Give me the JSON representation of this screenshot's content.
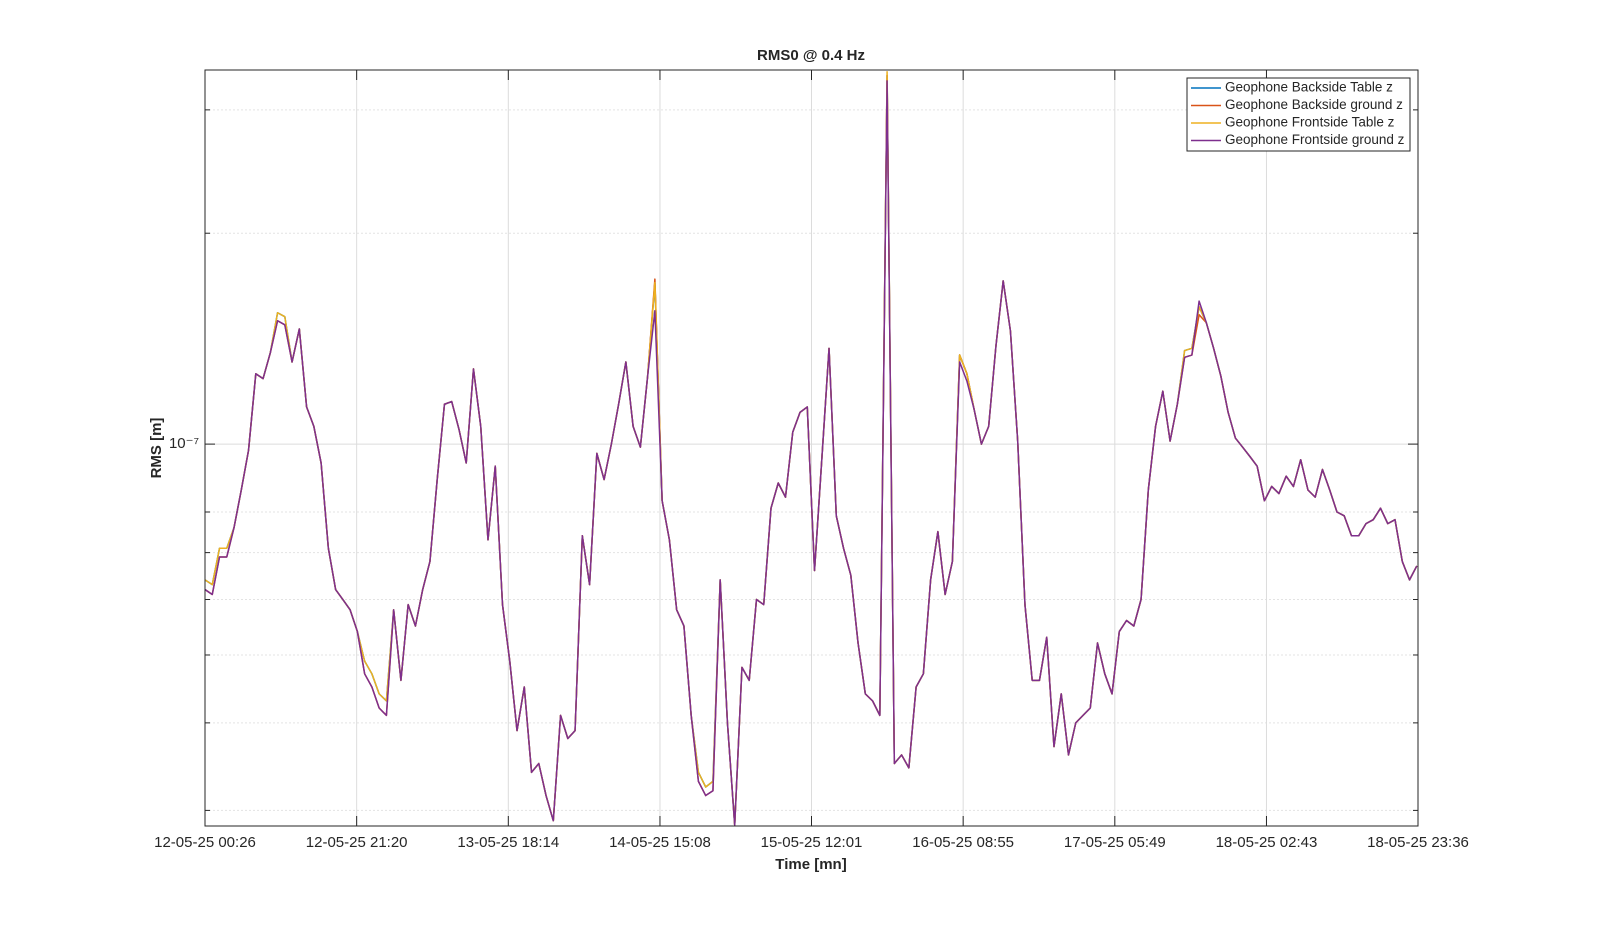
{
  "chart_data": {
    "type": "line",
    "title": "RMS0 @ 0.4 Hz",
    "xlabel": "Time [mn]",
    "ylabel": "RMS [m]",
    "yscale": "log",
    "grid": true,
    "legend": "northeast",
    "xlim": [
      "2025-05-12T00:26",
      "2025-05-18T23:36"
    ],
    "xticks": [
      {
        "value": "2025-05-12T00:26",
        "label": "12-05-25 00:26"
      },
      {
        "value": "2025-05-12T21:20",
        "label": "12-05-25 21:20"
      },
      {
        "value": "2025-05-13T18:14",
        "label": "13-05-25 18:14"
      },
      {
        "value": "2025-05-14T15:08",
        "label": "14-05-25 15:08"
      },
      {
        "value": "2025-05-15T12:01",
        "label": "15-05-25 12:01"
      },
      {
        "value": "2025-05-16T08:55",
        "label": "16-05-25 08:55"
      },
      {
        "value": "2025-05-17T05:49",
        "label": "17-05-25 05:49"
      },
      {
        "value": "2025-05-18T02:43",
        "label": "18-05-25 02:43"
      },
      {
        "value": "2025-05-18T23:36",
        "label": "18-05-25 23:36"
      }
    ],
    "ylim": [
      2.85e-08,
      3.42e-07
    ],
    "yticks": [
      {
        "value": 1e-07,
        "label": "10⁻⁷"
      }
    ],
    "yminorticks": [
      3e-08,
      4e-08,
      5e-08,
      6e-08,
      7e-08,
      8e-08,
      2e-07,
      3e-07
    ],
    "x": [
      "2025-05-12T00:26",
      "2025-05-12T01:26",
      "2025-05-12T02:26",
      "2025-05-12T03:26",
      "2025-05-12T04:26",
      "2025-05-12T05:26",
      "2025-05-12T06:26",
      "2025-05-12T07:26",
      "2025-05-12T08:26",
      "2025-05-12T09:26",
      "2025-05-12T10:26",
      "2025-05-12T11:26",
      "2025-05-12T12:26",
      "2025-05-12T13:26",
      "2025-05-12T14:26",
      "2025-05-12T15:26",
      "2025-05-12T16:26",
      "2025-05-12T17:26",
      "2025-05-12T18:26",
      "2025-05-12T19:26",
      "2025-05-12T20:26",
      "2025-05-12T21:26",
      "2025-05-12T22:26",
      "2025-05-12T23:26",
      "2025-05-13T00:26",
      "2025-05-13T01:26",
      "2025-05-13T02:26",
      "2025-05-13T03:26",
      "2025-05-13T04:26",
      "2025-05-13T05:26",
      "2025-05-13T06:26",
      "2025-05-13T07:26",
      "2025-05-13T08:26",
      "2025-05-13T09:26",
      "2025-05-13T10:26",
      "2025-05-13T11:26",
      "2025-05-13T12:26",
      "2025-05-13T13:26",
      "2025-05-13T14:26",
      "2025-05-13T15:26",
      "2025-05-13T16:26",
      "2025-05-13T17:26",
      "2025-05-13T18:26",
      "2025-05-13T19:26",
      "2025-05-13T20:26",
      "2025-05-13T21:26",
      "2025-05-13T22:26",
      "2025-05-13T23:26",
      "2025-05-14T00:26",
      "2025-05-14T01:26",
      "2025-05-14T02:26",
      "2025-05-14T03:26",
      "2025-05-14T04:26",
      "2025-05-14T05:26",
      "2025-05-14T06:26",
      "2025-05-14T07:26",
      "2025-05-14T08:26",
      "2025-05-14T09:26",
      "2025-05-14T10:26",
      "2025-05-14T11:26",
      "2025-05-14T12:26",
      "2025-05-14T13:26",
      "2025-05-14T14:26",
      "2025-05-14T15:26",
      "2025-05-14T16:26",
      "2025-05-14T17:26",
      "2025-05-14T18:26",
      "2025-05-14T19:26",
      "2025-05-14T20:26",
      "2025-05-14T21:26",
      "2025-05-14T22:26",
      "2025-05-14T23:26",
      "2025-05-15T00:26",
      "2025-05-15T01:26",
      "2025-05-15T02:26",
      "2025-05-15T03:26",
      "2025-05-15T04:26",
      "2025-05-15T05:26",
      "2025-05-15T06:26",
      "2025-05-15T07:26",
      "2025-05-15T08:26",
      "2025-05-15T09:26",
      "2025-05-15T10:26",
      "2025-05-15T11:26",
      "2025-05-15T12:26",
      "2025-05-15T13:26",
      "2025-05-15T14:26",
      "2025-05-15T15:26",
      "2025-05-15T16:26",
      "2025-05-15T17:26",
      "2025-05-15T18:26",
      "2025-05-15T19:26",
      "2025-05-15T20:26",
      "2025-05-15T21:26",
      "2025-05-15T22:26",
      "2025-05-15T23:26",
      "2025-05-16T00:26",
      "2025-05-16T01:26",
      "2025-05-16T02:26",
      "2025-05-16T03:26",
      "2025-05-16T04:26",
      "2025-05-16T05:26",
      "2025-05-16T06:26",
      "2025-05-16T07:26",
      "2025-05-16T08:26",
      "2025-05-16T09:26",
      "2025-05-16T10:26",
      "2025-05-16T11:26",
      "2025-05-16T12:26",
      "2025-05-16T13:26",
      "2025-05-16T14:26",
      "2025-05-16T15:26",
      "2025-05-16T16:26",
      "2025-05-16T17:26",
      "2025-05-16T18:26",
      "2025-05-16T19:26",
      "2025-05-16T20:26",
      "2025-05-16T21:26",
      "2025-05-16T22:26",
      "2025-05-16T23:26",
      "2025-05-17T00:26",
      "2025-05-17T01:26",
      "2025-05-17T02:26",
      "2025-05-17T03:26",
      "2025-05-17T04:26",
      "2025-05-17T05:26",
      "2025-05-17T06:26",
      "2025-05-17T07:26",
      "2025-05-17T08:26",
      "2025-05-17T09:26",
      "2025-05-17T10:26",
      "2025-05-17T11:26",
      "2025-05-17T12:26",
      "2025-05-17T13:26",
      "2025-05-17T14:26",
      "2025-05-17T15:26",
      "2025-05-17T16:26",
      "2025-05-17T17:26",
      "2025-05-17T18:26",
      "2025-05-17T19:26",
      "2025-05-17T20:26",
      "2025-05-17T21:26",
      "2025-05-17T22:26",
      "2025-05-17T23:26",
      "2025-05-18T00:26",
      "2025-05-18T01:26",
      "2025-05-18T02:26",
      "2025-05-18T03:26",
      "2025-05-18T04:26",
      "2025-05-18T05:26",
      "2025-05-18T06:26",
      "2025-05-18T07:26",
      "2025-05-18T08:26",
      "2025-05-18T09:26",
      "2025-05-18T10:26",
      "2025-05-18T11:26",
      "2025-05-18T12:26",
      "2025-05-18T13:26",
      "2025-05-18T14:26",
      "2025-05-18T15:26",
      "2025-05-18T16:26",
      "2025-05-18T17:26",
      "2025-05-18T18:26",
      "2025-05-18T19:26",
      "2025-05-18T20:26",
      "2025-05-18T21:26",
      "2025-05-18T22:26",
      "2025-05-18T23:26"
    ],
    "series": [
      {
        "name": "Geophone Backside Table z",
        "color": "#0072BD",
        "values": [
          6.4e-08,
          6.3e-08,
          7.1e-08,
          7.1e-08,
          7.6e-08,
          8.6e-08,
          9.8e-08,
          1.26e-07,
          1.24e-07,
          1.35e-07,
          1.54e-07,
          1.52e-07,
          1.31e-07,
          1.46e-07,
          1.13e-07,
          1.06e-07,
          9.4e-08,
          7.1e-08,
          6.2e-08,
          6e-08,
          5.8e-08,
          5.4e-08,
          4.9e-08,
          4.7e-08,
          4.4e-08,
          4.3e-08,
          5.8e-08,
          4.6e-08,
          5.9e-08,
          5.5e-08,
          6.2e-08,
          6.8e-08,
          8.9e-08,
          1.14e-07,
          1.15e-07,
          1.05e-07,
          9.4e-08,
          1.28e-07,
          1.06e-07,
          7.3e-08,
          9.3e-08,
          5.9e-08,
          4.9e-08,
          3.9e-08,
          4.5e-08,
          3.4e-08,
          3.5e-08,
          3.15e-08,
          2.9e-08,
          4.1e-08,
          3.8e-08,
          3.9e-08,
          7.4e-08,
          6.3e-08,
          9.7e-08,
          8.9e-08,
          1e-07,
          1.14e-07,
          1.31e-07,
          1.06e-07,
          9.9e-08,
          1.25e-07,
          1.7e-07,
          8.3e-08,
          7.3e-08,
          5.8e-08,
          5.5e-08,
          4.1e-08,
          3.4e-08,
          3.24e-08,
          3.3e-08,
          6.4e-08,
          4e-08,
          2.86e-08,
          4.8e-08,
          4.6e-08,
          6e-08,
          5.9e-08,
          8.1e-08,
          8.8e-08,
          8.4e-08,
          1.04e-07,
          1.11e-07,
          1.13e-07,
          6.6e-08,
          9.5e-08,
          1.37e-07,
          7.9e-08,
          7.1e-08,
          6.5e-08,
          5.2e-08,
          4.4e-08,
          4.3e-08,
          4.1e-08,
          3.36e-07,
          3.5e-08,
          3.6e-08,
          3.45e-08,
          4.5e-08,
          4.7e-08,
          6.4e-08,
          7.5e-08,
          6.1e-08,
          6.8e-08,
          1.34e-07,
          1.26e-07,
          1.12e-07,
          1e-07,
          1.06e-07,
          1.38e-07,
          1.71e-07,
          1.45e-07,
          1.01e-07,
          5.9e-08,
          4.6e-08,
          4.6e-08,
          5.3e-08,
          3.7e-08,
          4.4e-08,
          3.6e-08,
          4e-08,
          4.1e-08,
          4.2e-08,
          5.2e-08,
          4.7e-08,
          4.4e-08,
          5.4e-08,
          5.6e-08,
          5.5e-08,
          6e-08,
          8.6e-08,
          1.06e-07,
          1.19e-07,
          1.01e-07,
          1.14e-07,
          1.36e-07,
          1.37e-07,
          1.57e-07,
          1.49e-07,
          1.37e-07,
          1.25e-07,
          1.11e-07,
          1.02e-07,
          9.9e-08,
          9.6e-08,
          9.3e-08,
          8.3e-08,
          8.7e-08,
          8.5e-08,
          9e-08,
          8.7e-08,
          9.5e-08,
          8.6e-08,
          8.4e-08,
          9.2e-08,
          8.6e-08,
          8e-08,
          7.9e-08,
          7.4e-08,
          7.4e-08,
          7.7e-08,
          7.8e-08,
          8.1e-08,
          7.7e-08,
          7.8e-08,
          6.8e-08,
          6.4e-08,
          6.7e-08
        ]
      },
      {
        "name": "Geophone Backside ground z",
        "color": "#D95319",
        "values": [
          6.2e-08,
          6.1e-08,
          6.9e-08,
          6.9e-08,
          7.6e-08,
          8.6e-08,
          9.8e-08,
          1.26e-07,
          1.24e-07,
          1.35e-07,
          1.5e-07,
          1.48e-07,
          1.31e-07,
          1.46e-07,
          1.13e-07,
          1.06e-07,
          9.4e-08,
          7.1e-08,
          6.2e-08,
          6e-08,
          5.8e-08,
          5.4e-08,
          4.7e-08,
          4.5e-08,
          4.2e-08,
          4.1e-08,
          5.8e-08,
          4.6e-08,
          5.9e-08,
          5.5e-08,
          6.2e-08,
          6.8e-08,
          8.9e-08,
          1.14e-07,
          1.15e-07,
          1.05e-07,
          9.4e-08,
          1.28e-07,
          1.06e-07,
          7.3e-08,
          9.3e-08,
          5.9e-08,
          4.9e-08,
          3.9e-08,
          4.5e-08,
          3.4e-08,
          3.5e-08,
          3.15e-08,
          2.9e-08,
          4.1e-08,
          3.8e-08,
          3.9e-08,
          7.4e-08,
          6.3e-08,
          9.7e-08,
          8.9e-08,
          1e-07,
          1.14e-07,
          1.31e-07,
          1.06e-07,
          9.9e-08,
          1.25e-07,
          1.72e-07,
          8.3e-08,
          7.3e-08,
          5.8e-08,
          5.5e-08,
          4.1e-08,
          3.3e-08,
          3.15e-08,
          3.2e-08,
          6.4e-08,
          4e-08,
          2.86e-08,
          4.8e-08,
          4.6e-08,
          6e-08,
          5.9e-08,
          8.1e-08,
          8.8e-08,
          8.4e-08,
          1.04e-07,
          1.11e-07,
          1.13e-07,
          6.6e-08,
          9.5e-08,
          1.37e-07,
          7.9e-08,
          7.1e-08,
          6.5e-08,
          5.2e-08,
          4.4e-08,
          4.3e-08,
          4.1e-08,
          3.36e-07,
          3.5e-08,
          3.6e-08,
          3.45e-08,
          4.5e-08,
          4.7e-08,
          6.4e-08,
          7.5e-08,
          6.1e-08,
          6.8e-08,
          1.34e-07,
          1.26e-07,
          1.12e-07,
          1e-07,
          1.06e-07,
          1.38e-07,
          1.71e-07,
          1.45e-07,
          1.01e-07,
          5.9e-08,
          4.6e-08,
          4.6e-08,
          5.3e-08,
          3.7e-08,
          4.4e-08,
          3.6e-08,
          4e-08,
          4.1e-08,
          4.2e-08,
          5.2e-08,
          4.7e-08,
          4.4e-08,
          5.4e-08,
          5.6e-08,
          5.5e-08,
          6e-08,
          8.6e-08,
          1.06e-07,
          1.19e-07,
          1.01e-07,
          1.14e-07,
          1.33e-07,
          1.34e-07,
          1.53e-07,
          1.49e-07,
          1.37e-07,
          1.25e-07,
          1.11e-07,
          1.02e-07,
          9.9e-08,
          9.6e-08,
          9.3e-08,
          8.3e-08,
          8.7e-08,
          8.5e-08,
          9e-08,
          8.7e-08,
          9.5e-08,
          8.6e-08,
          8.4e-08,
          9.2e-08,
          8.6e-08,
          8e-08,
          7.9e-08,
          7.4e-08,
          7.4e-08,
          7.7e-08,
          7.8e-08,
          8.1e-08,
          7.7e-08,
          7.8e-08,
          6.8e-08,
          6.4e-08,
          6.7e-08
        ]
      },
      {
        "name": "Geophone Frontside Table z",
        "color": "#EDB120",
        "values": [
          6.4e-08,
          6.3e-08,
          7.1e-08,
          7.1e-08,
          7.6e-08,
          8.6e-08,
          9.8e-08,
          1.26e-07,
          1.24e-07,
          1.35e-07,
          1.54e-07,
          1.52e-07,
          1.31e-07,
          1.46e-07,
          1.13e-07,
          1.06e-07,
          9.4e-08,
          7.1e-08,
          6.2e-08,
          6e-08,
          5.8e-08,
          5.4e-08,
          4.9e-08,
          4.7e-08,
          4.4e-08,
          4.3e-08,
          5.8e-08,
          4.6e-08,
          5.9e-08,
          5.5e-08,
          6.2e-08,
          6.8e-08,
          8.9e-08,
          1.14e-07,
          1.15e-07,
          1.05e-07,
          9.4e-08,
          1.28e-07,
          1.06e-07,
          7.3e-08,
          9.3e-08,
          5.9e-08,
          4.9e-08,
          3.9e-08,
          4.5e-08,
          3.4e-08,
          3.5e-08,
          3.15e-08,
          2.9e-08,
          4.1e-08,
          3.8e-08,
          3.9e-08,
          7.4e-08,
          6.3e-08,
          9.7e-08,
          8.9e-08,
          1e-07,
          1.14e-07,
          1.31e-07,
          1.06e-07,
          9.9e-08,
          1.25e-07,
          1.7e-07,
          8.3e-08,
          7.3e-08,
          5.8e-08,
          5.5e-08,
          4.1e-08,
          3.4e-08,
          3.24e-08,
          3.3e-08,
          6.4e-08,
          4e-08,
          2.86e-08,
          4.8e-08,
          4.6e-08,
          6e-08,
          5.9e-08,
          8.1e-08,
          8.8e-08,
          8.4e-08,
          1.04e-07,
          1.11e-07,
          1.13e-07,
          6.6e-08,
          9.5e-08,
          1.37e-07,
          7.9e-08,
          7.1e-08,
          6.5e-08,
          5.2e-08,
          4.4e-08,
          4.3e-08,
          4.1e-08,
          3.4e-07,
          3.5e-08,
          3.6e-08,
          3.45e-08,
          4.5e-08,
          4.7e-08,
          6.4e-08,
          7.5e-08,
          6.1e-08,
          6.8e-08,
          1.34e-07,
          1.26e-07,
          1.12e-07,
          1e-07,
          1.06e-07,
          1.38e-07,
          1.71e-07,
          1.45e-07,
          1.01e-07,
          5.9e-08,
          4.6e-08,
          4.6e-08,
          5.3e-08,
          3.7e-08,
          4.4e-08,
          3.6e-08,
          4e-08,
          4.1e-08,
          4.2e-08,
          5.2e-08,
          4.7e-08,
          4.4e-08,
          5.4e-08,
          5.6e-08,
          5.5e-08,
          6e-08,
          8.6e-08,
          1.06e-07,
          1.19e-07,
          1.01e-07,
          1.14e-07,
          1.36e-07,
          1.37e-07,
          1.57e-07,
          1.49e-07,
          1.37e-07,
          1.25e-07,
          1.11e-07,
          1.02e-07,
          9.9e-08,
          9.6e-08,
          9.3e-08,
          8.3e-08,
          8.7e-08,
          8.5e-08,
          9e-08,
          8.7e-08,
          9.5e-08,
          8.6e-08,
          8.4e-08,
          9.2e-08,
          8.6e-08,
          8e-08,
          7.9e-08,
          7.4e-08,
          7.4e-08,
          7.7e-08,
          7.8e-08,
          8.1e-08,
          7.7e-08,
          7.8e-08,
          6.8e-08,
          6.4e-08,
          6.7e-08
        ]
      },
      {
        "name": "Geophone Frontside ground z",
        "color": "#7E2F8E",
        "values": [
          6.2e-08,
          6.1e-08,
          6.9e-08,
          6.9e-08,
          7.6e-08,
          8.6e-08,
          9.8e-08,
          1.26e-07,
          1.24e-07,
          1.35e-07,
          1.5e-07,
          1.48e-07,
          1.31e-07,
          1.46e-07,
          1.13e-07,
          1.06e-07,
          9.4e-08,
          7.1e-08,
          6.2e-08,
          6e-08,
          5.8e-08,
          5.4e-08,
          4.7e-08,
          4.5e-08,
          4.2e-08,
          4.1e-08,
          5.8e-08,
          4.6e-08,
          5.9e-08,
          5.5e-08,
          6.2e-08,
          6.8e-08,
          8.9e-08,
          1.14e-07,
          1.15e-07,
          1.05e-07,
          9.4e-08,
          1.28e-07,
          1.06e-07,
          7.3e-08,
          9.3e-08,
          5.9e-08,
          4.9e-08,
          3.9e-08,
          4.5e-08,
          3.4e-08,
          3.5e-08,
          3.15e-08,
          2.9e-08,
          4.1e-08,
          3.8e-08,
          3.9e-08,
          7.4e-08,
          6.3e-08,
          9.7e-08,
          8.9e-08,
          1e-07,
          1.14e-07,
          1.31e-07,
          1.06e-07,
          9.9e-08,
          1.25e-07,
          1.55e-07,
          8.3e-08,
          7.3e-08,
          5.8e-08,
          5.5e-08,
          4.1e-08,
          3.3e-08,
          3.15e-08,
          3.2e-08,
          6.4e-08,
          4e-08,
          2.86e-08,
          4.8e-08,
          4.6e-08,
          6e-08,
          5.9e-08,
          8.1e-08,
          8.8e-08,
          8.4e-08,
          1.04e-07,
          1.11e-07,
          1.13e-07,
          6.6e-08,
          9.5e-08,
          1.37e-07,
          7.9e-08,
          7.1e-08,
          6.5e-08,
          5.2e-08,
          4.4e-08,
          4.3e-08,
          4.1e-08,
          3.3e-07,
          3.5e-08,
          3.6e-08,
          3.45e-08,
          4.5e-08,
          4.7e-08,
          6.4e-08,
          7.5e-08,
          6.1e-08,
          6.8e-08,
          1.31e-07,
          1.23e-07,
          1.12e-07,
          1e-07,
          1.06e-07,
          1.38e-07,
          1.71e-07,
          1.45e-07,
          1.01e-07,
          5.9e-08,
          4.6e-08,
          4.6e-08,
          5.3e-08,
          3.7e-08,
          4.4e-08,
          3.6e-08,
          4e-08,
          4.1e-08,
          4.2e-08,
          5.2e-08,
          4.7e-08,
          4.4e-08,
          5.4e-08,
          5.6e-08,
          5.5e-08,
          6e-08,
          8.6e-08,
          1.06e-07,
          1.19e-07,
          1.01e-07,
          1.14e-07,
          1.33e-07,
          1.34e-07,
          1.6e-07,
          1.49e-07,
          1.37e-07,
          1.25e-07,
          1.11e-07,
          1.02e-07,
          9.9e-08,
          9.6e-08,
          9.3e-08,
          8.3e-08,
          8.7e-08,
          8.5e-08,
          9e-08,
          8.7e-08,
          9.5e-08,
          8.6e-08,
          8.4e-08,
          9.2e-08,
          8.6e-08,
          8e-08,
          7.9e-08,
          7.4e-08,
          7.4e-08,
          7.7e-08,
          7.8e-08,
          8.1e-08,
          7.7e-08,
          7.8e-08,
          6.8e-08,
          6.4e-08,
          6.7e-08
        ]
      }
    ]
  }
}
